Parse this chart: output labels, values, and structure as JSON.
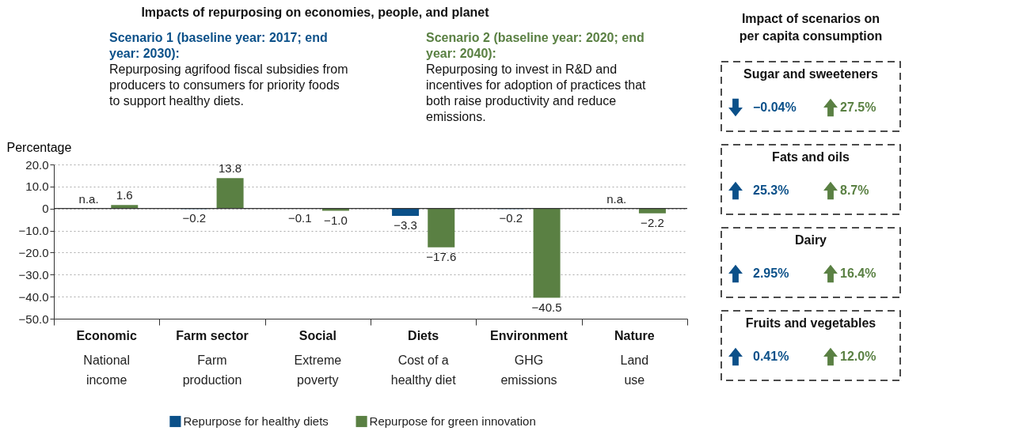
{
  "chart_data": [
    {
      "type": "bar",
      "title": "Impacts of repurposing on economies, people, and planet",
      "ylabel": "Percentage",
      "annotations": [
        "Scenario 1 (baseline year: 2017; end year: 2030): Repurposing agrifood fiscal subsidies from producers to consumers for priority foods to support healthy diets.",
        "Scenario 2 (baseline year: 2020; end year: 2040): Repurposing to invest in R&D and incentives for adoption of practices that both raise productivity and reduce emissions."
      ],
      "categories": [
        "Economic\nNational\nincome",
        "Farm sector\nFarm\nproduction",
        "Social\nExtreme\npoverty",
        "Diets\nCost of a\nhealthy diet",
        "Environment\nGHG\nemissions",
        "Nature\nLand\nuse"
      ],
      "series": [
        {
          "name": "Repurpose for healthy diets",
          "color": "#0b5089",
          "values": [
            null,
            -0.2,
            -0.1,
            -3.3,
            -0.2,
            null
          ],
          "value_labels": [
            "n.a.",
            "−0.2",
            "−0.1",
            "−3.3",
            "−0.2",
            "n.a."
          ]
        },
        {
          "name": "Repurpose for green innovation",
          "color": "#5a8043",
          "values": [
            1.6,
            13.8,
            -1.0,
            -17.6,
            -40.5,
            -2.2
          ],
          "value_labels": [
            "1.6",
            "13.8",
            "−1.0",
            "−17.6",
            "−40.5",
            "−2.2"
          ]
        }
      ],
      "ylim": [
        -50,
        20
      ],
      "yticks": [
        {
          "value": 20,
          "label": "20.0"
        },
        {
          "value": 10,
          "label": "10.0"
        },
        0,
        {
          "value": -10,
          "label": "−10.0"
        },
        {
          "value": -20,
          "label": "−20.0"
        },
        {
          "value": -30,
          "label": "−30.0"
        },
        {
          "value": -40,
          "label": "−40.0"
        },
        {
          "value": -50,
          "label": "−50.0"
        }
      ],
      "ref_lines": [
        {
          "axis": "y",
          "value": 0
        }
      ],
      "grid": "y",
      "legend": "bottom"
    },
    {
      "type": "other",
      "title": "Impact of scenarios on per capita consumption",
      "categories": [
        "Sugar and sweeteners",
        "Fats and oils",
        "Dairy",
        "Fruits and vegetables"
      ],
      "series": [
        {
          "color": "#0b5089",
          "values": [
            -0.04,
            25.3,
            2.95,
            0.41
          ],
          "value_labels": [
            "−0.04%",
            "25.3%",
            "2.95%",
            "0.41%"
          ]
        },
        {
          "color": "#5a8043",
          "values": [
            27.5,
            8.7,
            16.4,
            12.0
          ],
          "value_labels": [
            "27.5%",
            "8.7%",
            "16.4%",
            "12.0%"
          ]
        }
      ]
    }
  ]
}
